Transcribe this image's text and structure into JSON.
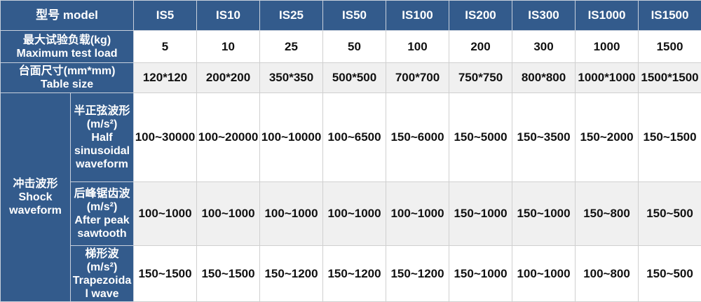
{
  "header": {
    "label": "型号 model",
    "models": [
      "IS5",
      "IS10",
      "IS25",
      "IS50",
      "IS100",
      "IS200",
      "IS300",
      "IS1000",
      "IS1500"
    ]
  },
  "rows": {
    "max_load": {
      "label_cn": "最大试验负载(kg)",
      "label_en": "Maximum test load",
      "values": [
        "5",
        "10",
        "25",
        "50",
        "100",
        "200",
        "300",
        "1000",
        "1500"
      ]
    },
    "table_size": {
      "label_cn": "台面尺寸(mm*mm)",
      "label_en": "Table size",
      "values": [
        "120*120",
        "200*200",
        "350*350",
        "500*500",
        "700*700",
        "750*750",
        "800*800",
        "1000*1000",
        "1500*1500"
      ]
    },
    "shock": {
      "label_cn": "冲击波形",
      "label_en": "Shock waveform",
      "half_sine": {
        "label_cn": "半正弦波形",
        "unit": "(m/s²)",
        "label_en": "Half sinusoidal waveform",
        "values": [
          "100~30000",
          "100~20000",
          "100~10000",
          "100~6500",
          "150~6000",
          "150~5000",
          "150~3500",
          "150~2000",
          "150~1500"
        ]
      },
      "sawtooth": {
        "label_cn": "后峰锯齿波",
        "unit": "(m/s²)",
        "label_en": "After peak sawtooth",
        "values": [
          "100~1000",
          "100~1000",
          "100~1000",
          "100~1000",
          "100~1000",
          "150~1000",
          "150~1000",
          "150~800",
          "150~500"
        ]
      },
      "trapezoid": {
        "label_cn": "梯形波",
        "unit": "(m/s²)",
        "label_en": "Trapezoidal wave",
        "values": [
          "150~1500",
          "150~1500",
          "150~1200",
          "150~1200",
          "150~1200",
          "150~1000",
          "100~1000",
          "100~800",
          "150~500"
        ]
      }
    }
  },
  "colors": {
    "header_bg": "#335b8c",
    "alt_row": "#f0f0f0"
  }
}
